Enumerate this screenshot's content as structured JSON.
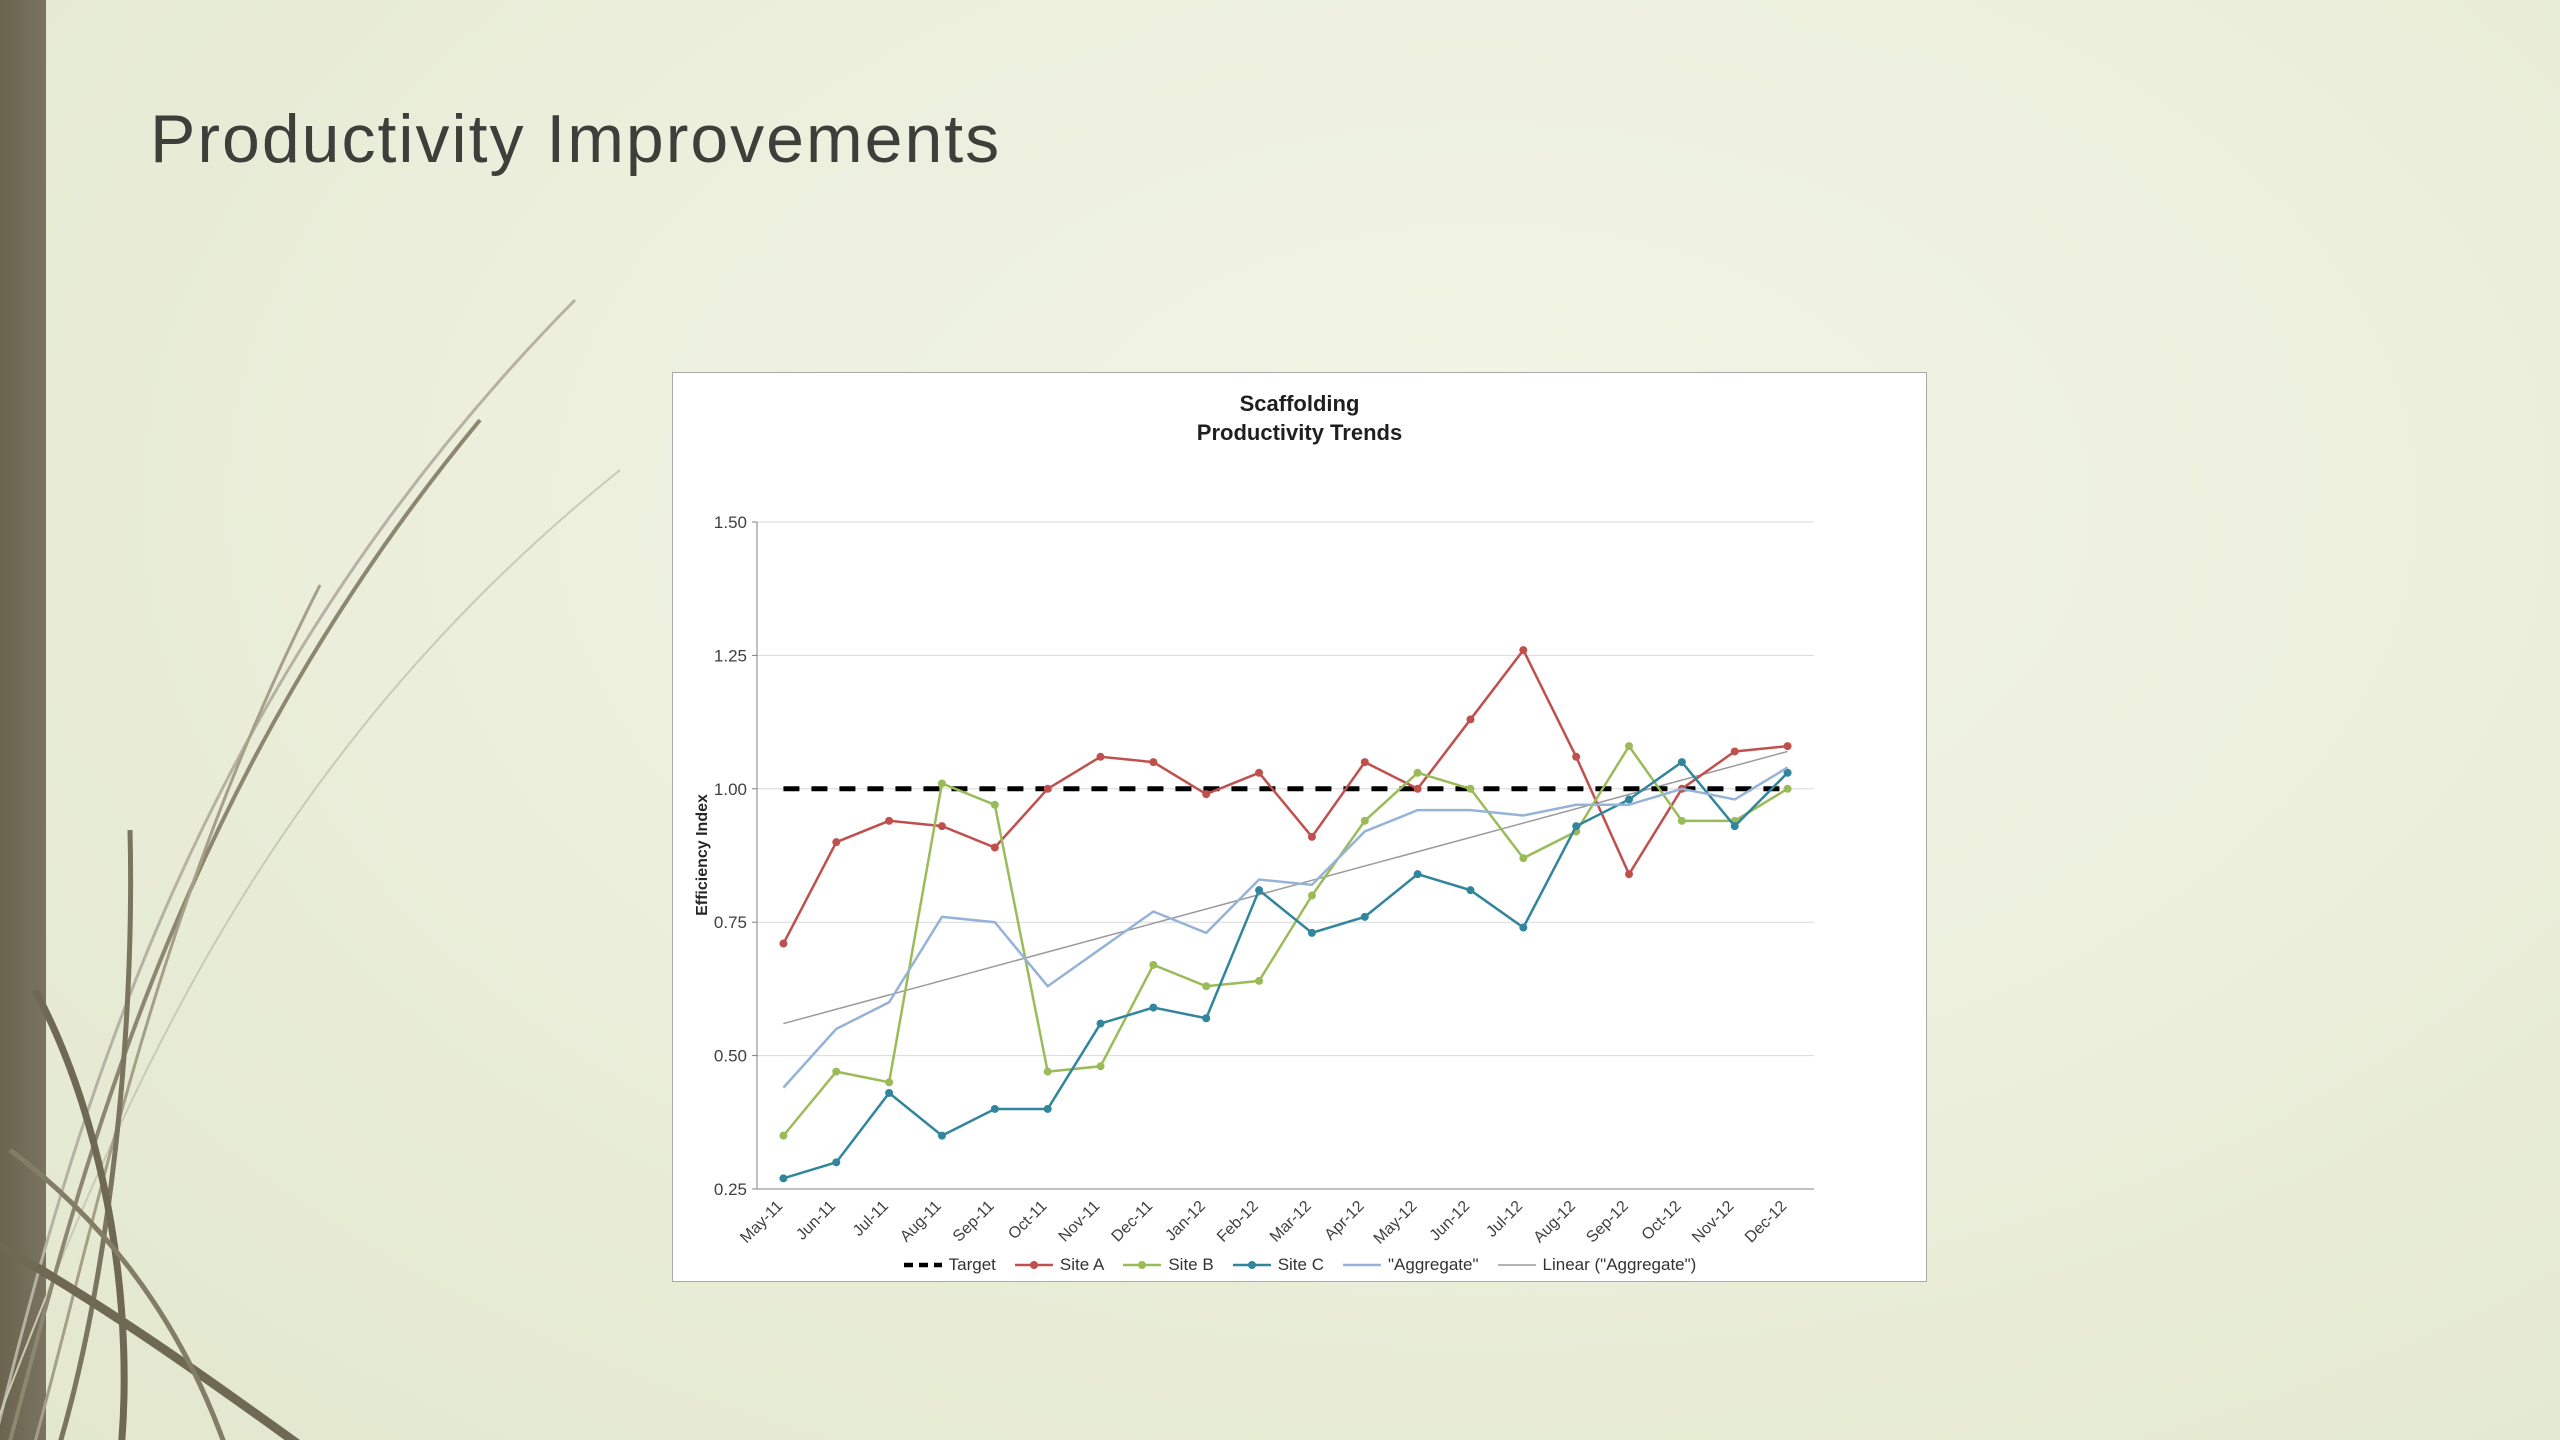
{
  "slide": {
    "title": "Productivity Improvements"
  },
  "colors": {
    "accent_bar": "#6a644e",
    "site_a": "#C0504D",
    "site_b": "#9BBB59",
    "site_c": "#31859C",
    "aggregate": "#95B3D7",
    "trend": "#9a9a9a",
    "target": "#000000"
  },
  "chart_data": {
    "type": "line",
    "title_lines": [
      "Scaffolding",
      "Productivity Trends"
    ],
    "ylabel": "Efficiency Index",
    "ylim": [
      0.25,
      1.5
    ],
    "ytick_step": 0.25,
    "grid": true,
    "legend_position": "bottom",
    "categories": [
      "May-11",
      "Jun-11",
      "Jul-11",
      "Aug-11",
      "Sep-11",
      "Oct-11",
      "Nov-11",
      "Dec-11",
      "Jan-12",
      "Feb-12",
      "Mar-12",
      "Apr-12",
      "May-12",
      "Jun-12",
      "Jul-12",
      "Aug-12",
      "Sep-12",
      "Oct-12",
      "Nov-12",
      "Dec-12"
    ],
    "series": [
      {
        "name": "Target",
        "color": "#000000",
        "width": 5,
        "dash": "16 12",
        "markers": false,
        "constant": 1.0
      },
      {
        "name": "Site A",
        "color": "#C0504D",
        "width": 2.5,
        "markers": true,
        "values": [
          0.71,
          0.9,
          0.94,
          0.93,
          0.89,
          1.0,
          1.06,
          1.05,
          0.99,
          1.03,
          0.91,
          1.05,
          1.0,
          1.13,
          1.26,
          1.06,
          0.84,
          1.0,
          1.07,
          1.08
        ]
      },
      {
        "name": "Site B",
        "color": "#9BBB59",
        "width": 2.5,
        "markers": true,
        "values": [
          0.35,
          0.47,
          0.45,
          1.01,
          0.97,
          0.47,
          0.48,
          0.67,
          0.63,
          0.64,
          0.8,
          0.94,
          1.03,
          1.0,
          0.87,
          0.92,
          1.08,
          0.94,
          0.94,
          1.0
        ]
      },
      {
        "name": "Site C",
        "color": "#31859C",
        "width": 2.5,
        "markers": true,
        "values": [
          0.27,
          0.3,
          0.43,
          0.35,
          0.4,
          0.4,
          0.56,
          0.59,
          0.57,
          0.81,
          0.73,
          0.76,
          0.84,
          0.81,
          0.74,
          0.93,
          0.98,
          1.05,
          0.93,
          1.03
        ]
      },
      {
        "name": "\"Aggregate\"",
        "color": "#95B3D7",
        "width": 2.5,
        "markers": false,
        "values": [
          0.44,
          0.55,
          0.6,
          0.76,
          0.75,
          0.63,
          0.7,
          0.77,
          0.73,
          0.83,
          0.82,
          0.92,
          0.96,
          0.96,
          0.95,
          0.97,
          0.97,
          1.0,
          0.98,
          1.04
        ]
      }
    ],
    "trend": {
      "name": "Linear (\"Aggregate\")",
      "color": "#9a9a9a",
      "start": 0.56,
      "end": 1.07
    }
  }
}
